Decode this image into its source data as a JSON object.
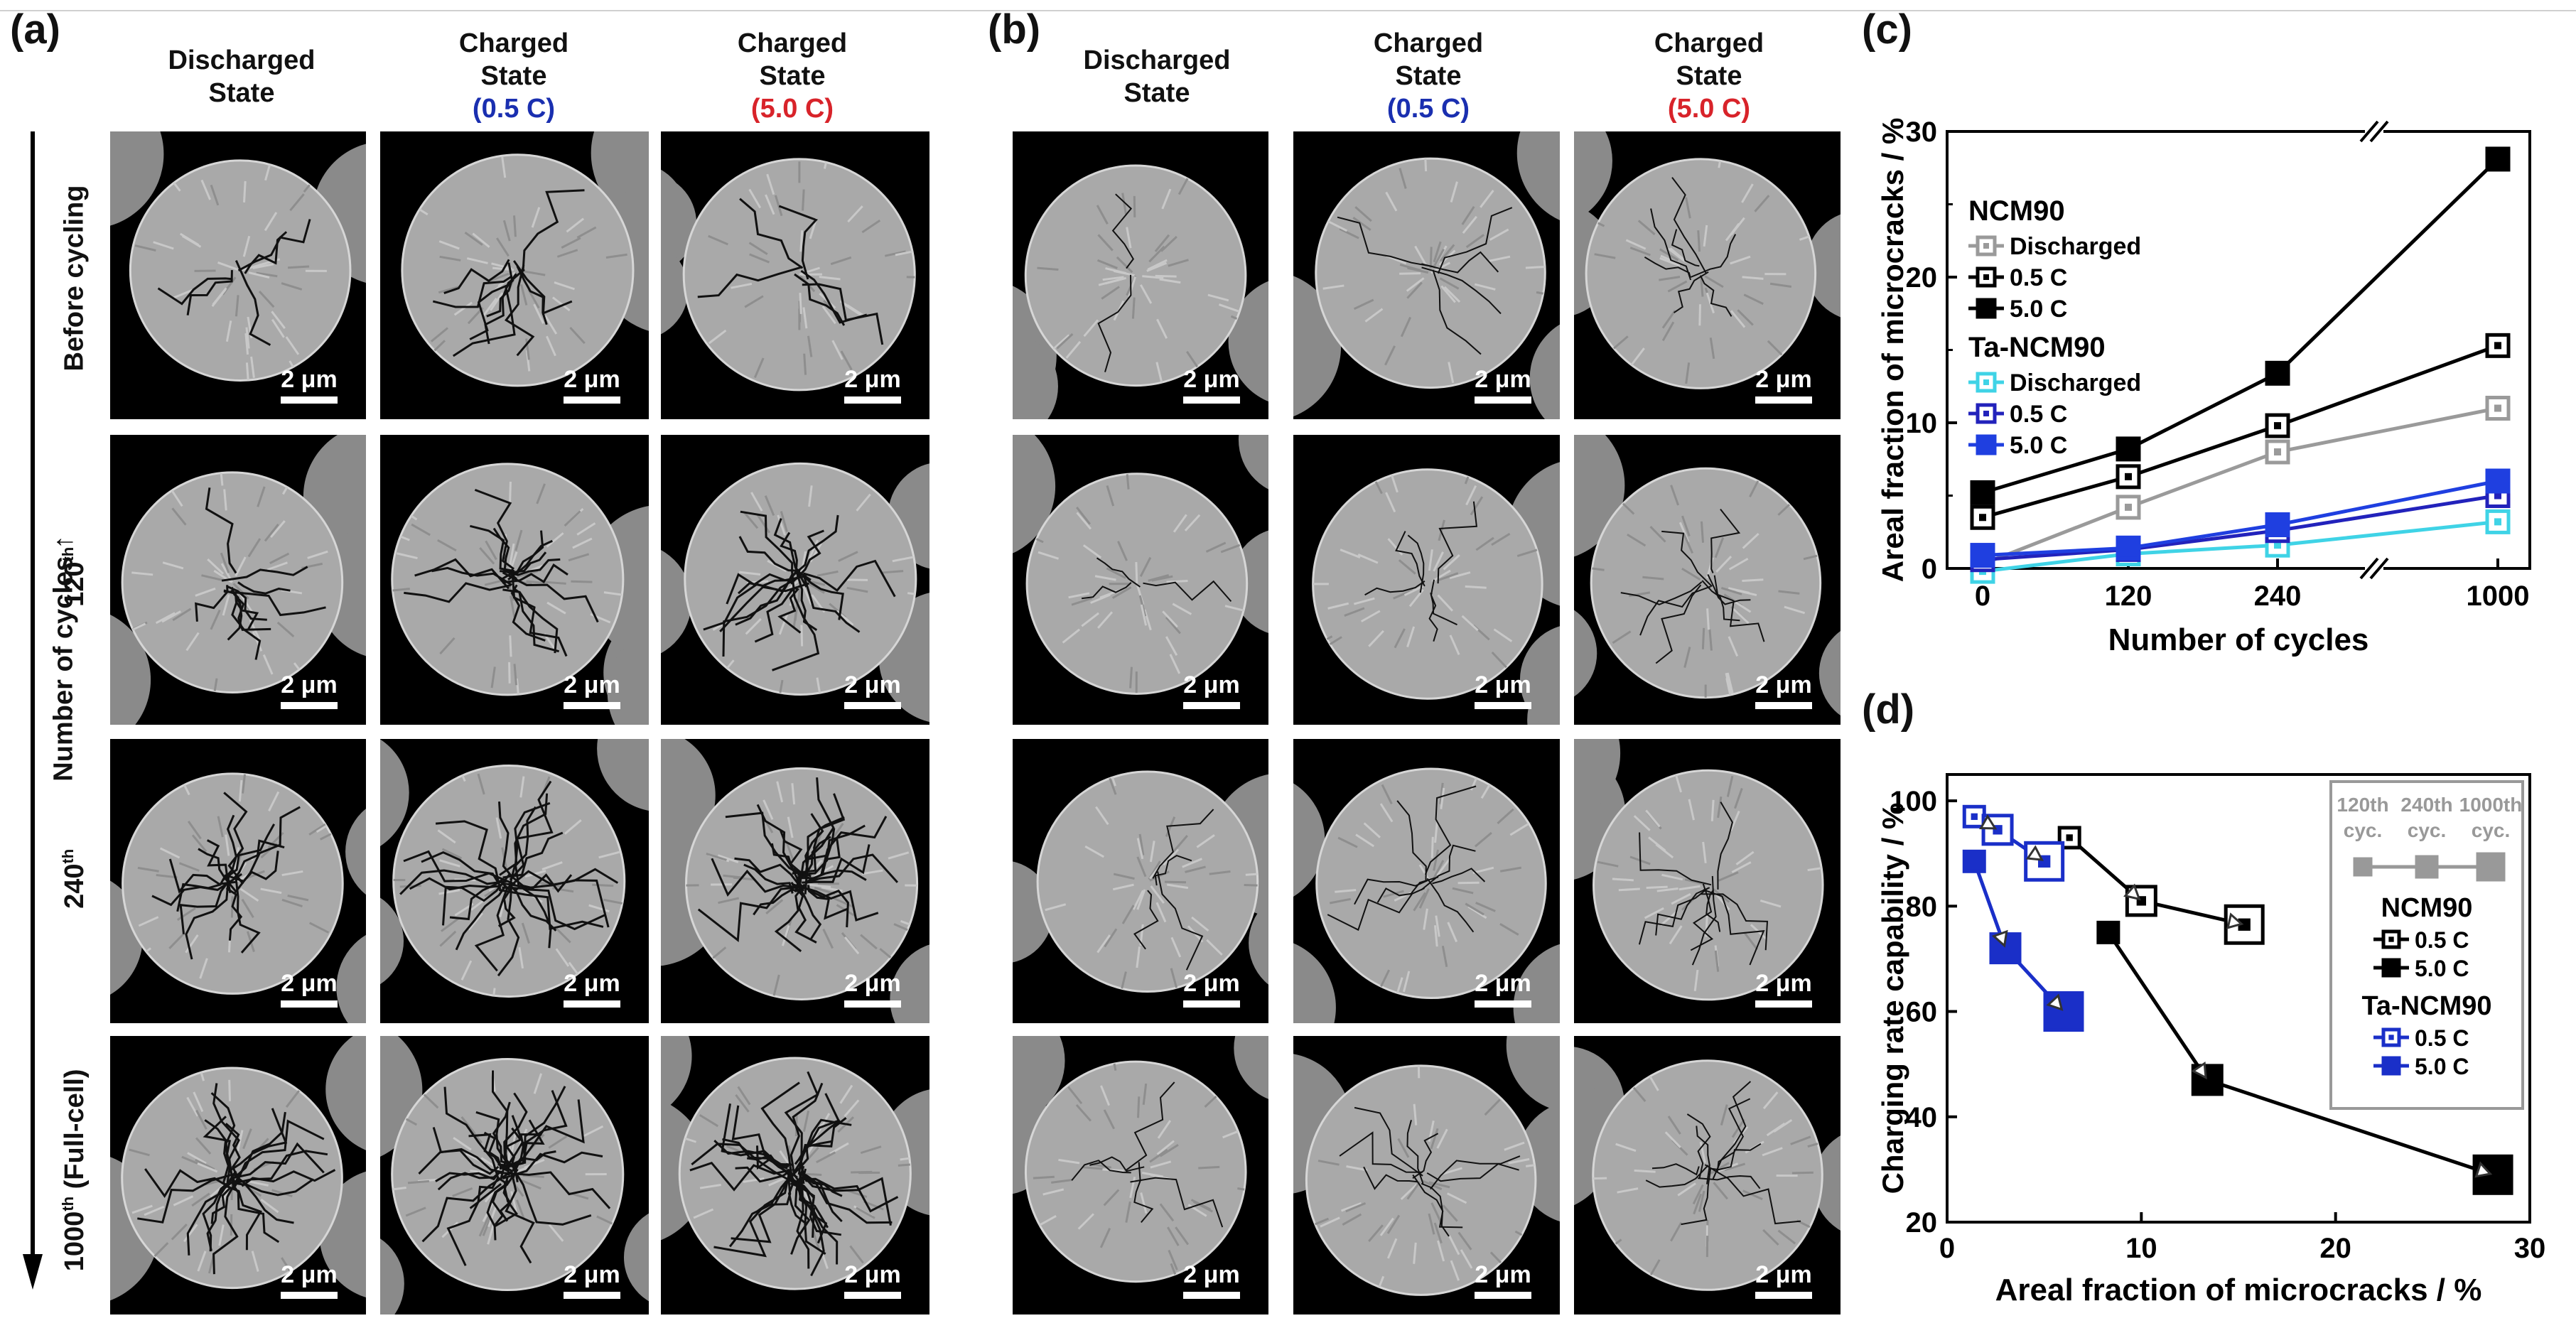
{
  "panels": {
    "a": {
      "label": "(a)"
    },
    "b": {
      "label": "(b)"
    },
    "c": {
      "label": "(c)"
    },
    "d": {
      "label": "(d)"
    }
  },
  "columns": [
    {
      "line1": "Discharged",
      "line2": "State",
      "line3": ""
    },
    {
      "line1": "Charged",
      "line2": "State",
      "line3": "(0.5 C)"
    },
    {
      "line1": "Charged",
      "line2": "State",
      "line3": "(5.0 C)"
    }
  ],
  "rows": {
    "axis_label": "Number of cycles",
    "arrow": "↑",
    "items": [
      "Before cycling",
      "120",
      "240",
      "1000"
    ],
    "superscript": "th",
    "fullcell": " (Full-cell)"
  },
  "scale_bar": "2 μm",
  "chart_data": [
    {
      "type": "line",
      "id": "c",
      "xlabel": "Number of cycles",
      "ylabel": "Areal fraction of microcracks / %",
      "categories": [
        "0",
        "120",
        "240",
        "1000"
      ],
      "ylim": [
        0,
        30
      ],
      "yticks": [
        0,
        10,
        20,
        30
      ],
      "legend_groups": [
        {
          "title": "NCM90",
          "entries": [
            "Discharged",
            "0.5 C",
            "5.0 C"
          ]
        },
        {
          "title": "Ta-NCM90",
          "entries": [
            "Discharged",
            "0.5 C",
            "5.0 C"
          ]
        }
      ],
      "series": [
        {
          "name": "NCM90 Discharged",
          "color": "#9a9a9a",
          "filled": false,
          "values": [
            0.3,
            4.2,
            8.0,
            11.0
          ]
        },
        {
          "name": "NCM90 0.5 C",
          "color": "#000000",
          "filled": false,
          "values": [
            3.5,
            6.3,
            9.8,
            15.3
          ]
        },
        {
          "name": "NCM90 5.0 C",
          "color": "#000000",
          "filled": true,
          "values": [
            5.2,
            8.2,
            13.4,
            28.1
          ]
        },
        {
          "name": "Ta-NCM90 Discharged",
          "color": "#3fd3e6",
          "filled": false,
          "values": [
            -0.2,
            1.0,
            1.6,
            3.2
          ]
        },
        {
          "name": "Ta-NCM90 0.5 C",
          "color": "#2222bb",
          "filled": false,
          "values": [
            0.6,
            1.3,
            2.6,
            5.0
          ]
        },
        {
          "name": "Ta-NCM90 5.0 C",
          "color": "#1f3fe0",
          "filled": true,
          "values": [
            0.9,
            1.4,
            3.0,
            6.0
          ]
        }
      ]
    },
    {
      "type": "scatter",
      "id": "d",
      "xlabel": "Areal fraction of microcracks / %",
      "ylabel": "Charging rate capability / %",
      "xlim": [
        0,
        30
      ],
      "ylim": [
        20,
        105
      ],
      "xticks": [
        0,
        10,
        20,
        30
      ],
      "yticks": [
        20,
        40,
        60,
        80,
        100
      ],
      "inset": {
        "labels": [
          "120",
          "240",
          "1000"
        ],
        "suffix": "th",
        "cyc": "cyc."
      },
      "legend_groups": [
        {
          "title": "NCM90",
          "entries": [
            "0.5 C",
            "5.0 C"
          ]
        },
        {
          "title": "Ta-NCM90",
          "entries": [
            "0.5 C",
            "5.0 C"
          ]
        }
      ],
      "series": [
        {
          "name": "NCM90 0.5 C",
          "color": "#000000",
          "filled": false,
          "points": [
            [
              6.3,
              93
            ],
            [
              10.0,
              81
            ],
            [
              15.3,
              76.5
            ]
          ]
        },
        {
          "name": "NCM90 5.0 C",
          "color": "#000000",
          "filled": true,
          "points": [
            [
              8.3,
              75
            ],
            [
              13.4,
              47
            ],
            [
              28.1,
              29
            ]
          ]
        },
        {
          "name": "Ta-NCM90 0.5 C",
          "color": "#1a2fc8",
          "filled": false,
          "points": [
            [
              1.4,
              97
            ],
            [
              2.6,
              94.5
            ],
            [
              5.0,
              88.5
            ]
          ]
        },
        {
          "name": "Ta-NCM90 5.0 C",
          "color": "#1a2fc8",
          "filled": true,
          "points": [
            [
              1.4,
              88.5
            ],
            [
              3.0,
              72
            ],
            [
              6.0,
              60
            ]
          ]
        }
      ]
    }
  ]
}
